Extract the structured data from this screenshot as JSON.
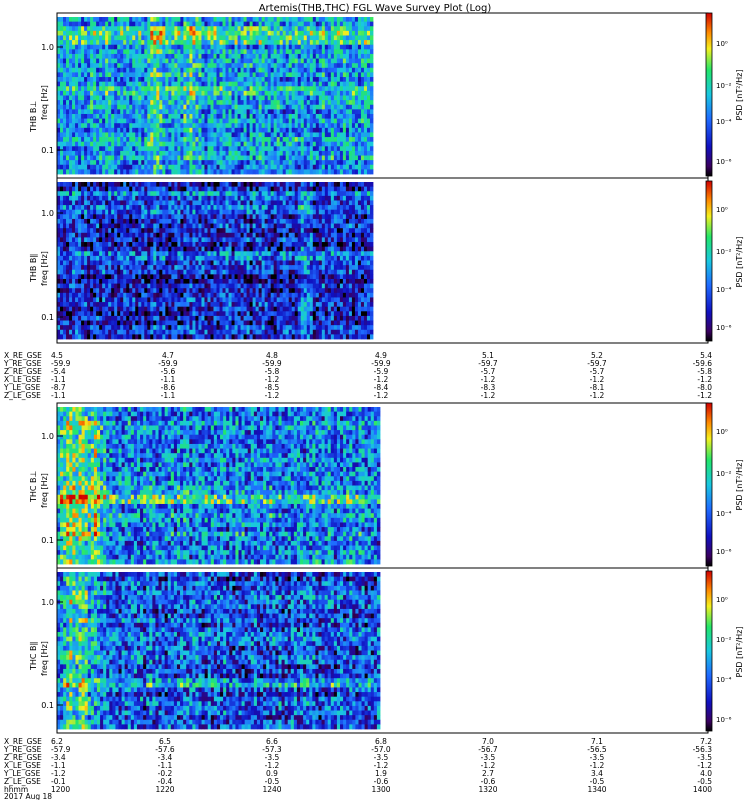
{
  "title": "Artemis(THB,THC) FGL Wave Survey Plot (Log)",
  "colorbar": {
    "label": "PSD [nT²/Hz]",
    "ticks": [
      "10⁰",
      "10⁻²",
      "10⁻⁴",
      "10⁻⁶"
    ]
  },
  "y_axis": {
    "label": "freq [Hz]",
    "ticks": [
      "1.0",
      "0.1"
    ]
  },
  "panels": [
    {
      "id": "thb-bperp",
      "name": "THB B⊥"
    },
    {
      "id": "thb-bpar",
      "name": "THB B∥"
    },
    {
      "id": "thc-bperp",
      "name": "THC B⊥"
    },
    {
      "id": "thc-bpar",
      "name": "THC B∥"
    }
  ],
  "ephemeris_thb": {
    "labels": [
      "X_RE_GSE",
      "Y_RE_GSE",
      "Z_RE_GSE",
      "X_LE_GSE",
      "Y_LE_GSE",
      "Z_LE_GSE"
    ],
    "columns": [
      [
        "4.5",
        "-59.9",
        "-5.4",
        "-1.1",
        "-8.7",
        "-1.1"
      ],
      [
        "4.7",
        "-59.9",
        "-5.6",
        "-1.1",
        "-8.6",
        "-1.1"
      ],
      [
        "4.8",
        "-59.9",
        "-5.8",
        "-1.2",
        "-8.5",
        "-1.2"
      ],
      [
        "4.9",
        "-59.9",
        "-5.9",
        "-1.2",
        "-8.4",
        "-1.2"
      ],
      [
        "5.1",
        "-59.7",
        "-5.7",
        "-1.2",
        "-8.3",
        "-1.2"
      ],
      [
        "5.2",
        "-59.7",
        "-5.7",
        "-1.2",
        "-8.1",
        "-1.2"
      ],
      [
        "5.4",
        "-59.6",
        "-5.8",
        "-1.2",
        "-8.0",
        "-1.2"
      ]
    ]
  },
  "ephemeris_thc": {
    "labels": [
      "X_RE_GSE",
      "Y_RE_GSE",
      "Z_RE_GSE",
      "X_LE_GSE",
      "Y_LE_GSE",
      "Z_LE_GSE",
      "hhmm",
      "2017 Aug 18"
    ],
    "columns": [
      [
        "6.2",
        "-57.9",
        "-3.4",
        "-1.1",
        "-1.2",
        "-0.1",
        "1200"
      ],
      [
        "6.5",
        "-57.6",
        "-3.4",
        "-1.1",
        "-0.2",
        "-0.4",
        "1220"
      ],
      [
        "6.6",
        "-57.3",
        "-3.5",
        "-1.2",
        "0.9",
        "-0.5",
        "1240"
      ],
      [
        "6.8",
        "-57.0",
        "-3.5",
        "-1.2",
        "1.9",
        "-0.6",
        "1300"
      ],
      [
        "7.0",
        "-56.7",
        "-3.5",
        "-1.2",
        "2.7",
        "-0.6",
        "1320"
      ],
      [
        "7.1",
        "-56.5",
        "-3.5",
        "-1.2",
        "3.4",
        "-0.5",
        "1340"
      ],
      [
        "7.2",
        "-56.3",
        "-3.5",
        "-1.2",
        "4.0",
        "-0.5",
        "1400"
      ]
    ]
  },
  "chart_data": {
    "type": "heatmap",
    "title": "Artemis(THB,THC) FGL Wave Survey Plot (Log)",
    "xlabel": "hhmm",
    "x_ticks": [
      "1200",
      "1220",
      "1240",
      "1300",
      "1320",
      "1340",
      "1400"
    ],
    "ylabel": "freq [Hz]",
    "y_scale": "log",
    "y_ticks": [
      1.0,
      0.1
    ],
    "color_scale": "log",
    "colorbar_label": "PSD [nT²/Hz]",
    "colorbar_ticks": [
      "10⁰",
      "10⁻²",
      "10⁻⁴",
      "10⁻⁶"
    ],
    "data_extent_fraction": 0.5,
    "panels": [
      {
        "name": "THB B⊥",
        "base_level": 0.42,
        "noise": 0.22,
        "bright_rows": [
          0.92,
          0.86,
          0.55
        ],
        "hot_columns": [
          0.42,
          0.31
        ]
      },
      {
        "name": "THB B∥",
        "base_level": 0.22,
        "noise": 0.22,
        "bright_rows": [
          0.93,
          0.83,
          0.55
        ],
        "hot_columns": [
          0.78
        ]
      },
      {
        "name": "THC B⊥",
        "base_level": 0.38,
        "noise": 0.24,
        "bright_rows": [
          0.42
        ],
        "hot_columns": [
          0.03,
          0.07,
          0.11
        ]
      },
      {
        "name": "THC B∥",
        "base_level": 0.3,
        "noise": 0.24,
        "bright_rows": [
          0.32
        ],
        "hot_columns": [
          0.04,
          0.08
        ]
      }
    ]
  }
}
